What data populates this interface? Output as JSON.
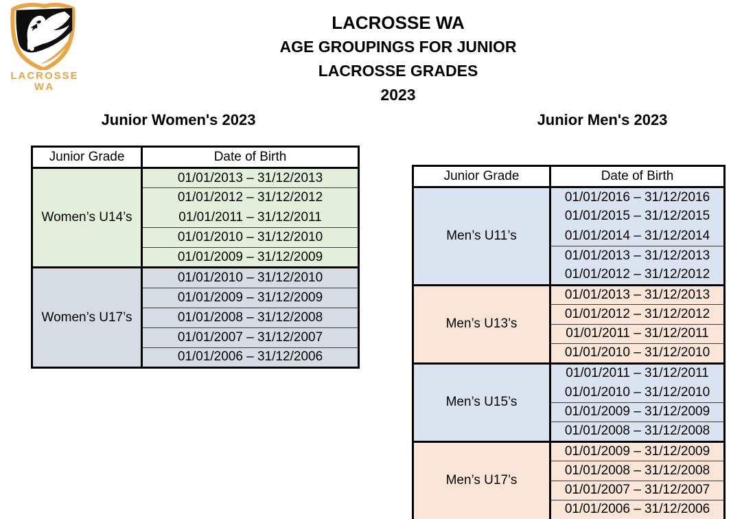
{
  "logo": {
    "text_line1": "LACROSSE",
    "text_line2": "WA",
    "gold": "#E8A542",
    "shield_black": "#0d0d0d",
    "swan_white": "#ffffff"
  },
  "title": {
    "line1": "LACROSSE WA",
    "line2": "AGE GROUPINGS FOR JUNIOR",
    "line3": "LACROSSE GRADES",
    "line4": "2023"
  },
  "tables": [
    {
      "heading": "Junior Women's 2023",
      "columns": [
        "Junior Grade",
        "Date of Birth"
      ],
      "groups": [
        {
          "grade": "Women’s U14’s",
          "color": "#E2EFDA",
          "dividers": [
            1,
            3,
            4
          ],
          "rows": [
            "01/01/2013 – 31/12/2013",
            "01/01/2012 – 31/12/2012",
            "01/01/2011 – 31/12/2011",
            "01/01/2010 – 31/12/2010",
            "01/01/2009 – 31/12/2009"
          ]
        },
        {
          "grade": "Women’s U17’s",
          "color": "#D6DCE4",
          "dividers": [
            1,
            2,
            3,
            4
          ],
          "rows": [
            "01/01/2010 – 31/12/2010",
            "01/01/2009 – 31/12/2009",
            "01/01/2008 – 31/12/2008",
            "01/01/2007 – 31/12/2007",
            "01/01/2006 – 31/12/2006"
          ]
        }
      ]
    },
    {
      "heading": "Junior Men's 2023",
      "columns": [
        "Junior Grade",
        "Date of Birth"
      ],
      "groups": [
        {
          "grade": "Men’s U11’s",
          "color": "#DAE3F0",
          "dividers": [
            3
          ],
          "rows": [
            "01/01/2016 – 31/12/2016",
            "01/01/2015 – 31/12/2015",
            "01/01/2014 – 31/12/2014",
            "01/01/2013 – 31/12/2013",
            "01/01/2012 – 31/12/2012"
          ]
        },
        {
          "grade": "Men’s U13’s",
          "color": "#FBE5D6",
          "dividers": [
            1,
            2,
            3
          ],
          "rows": [
            "01/01/2013 – 31/12/2013",
            "01/01/2012 – 31/12/2012",
            "01/01/2011 – 31/12/2011",
            "01/01/2010 – 31/12/2010"
          ]
        },
        {
          "grade": "Men’s U15’s",
          "color": "#DAE3F0",
          "dividers": [
            2,
            3
          ],
          "rows": [
            "01/01/2011 – 31/12/2011",
            "01/01/2010 – 31/12/2010",
            "01/01/2009 – 31/12/2009",
            "01/01/2008 – 31/12/2008"
          ]
        },
        {
          "grade": "Men’s U17’s",
          "color": "#FBE5D6",
          "dividers": [
            1,
            2,
            3
          ],
          "rows": [
            "01/01/2009 – 31/12/2009",
            "01/01/2008 – 31/12/2008",
            "01/01/2007 – 31/12/2007",
            "01/01/2006 – 31/12/2006"
          ]
        }
      ]
    }
  ]
}
